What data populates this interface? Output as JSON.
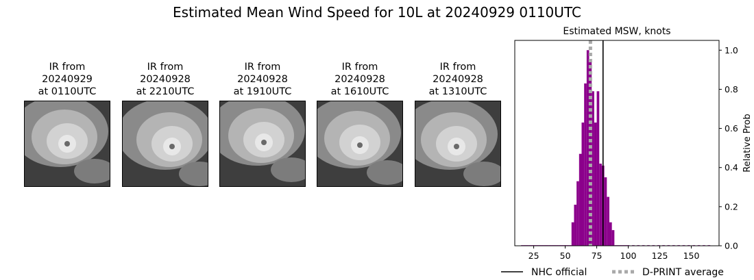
{
  "title": "Estimated Mean Wind Speed for 10L at 20240929 0110UTC",
  "ir_panels": [
    {
      "line1": "IR from",
      "line2": "20240929",
      "line3": "at 0110UTC"
    },
    {
      "line1": "IR from",
      "line2": "20240928",
      "line3": "at 2210UTC"
    },
    {
      "line1": "IR from",
      "line2": "20240928",
      "line3": "at 1910UTC"
    },
    {
      "line1": "IR from",
      "line2": "20240928",
      "line3": "at 1610UTC"
    },
    {
      "line1": "IR from",
      "line2": "20240928",
      "line3": "at 1310UTC"
    }
  ],
  "chart_data": {
    "type": "bar",
    "title": "Estimated MSW, knots",
    "xlabel": "",
    "ylabel": "Relative Prob",
    "xlim": [
      10,
      172
    ],
    "ylim": [
      0,
      1.05
    ],
    "xticks": [
      25,
      50,
      75,
      100,
      125,
      150
    ],
    "yticks": [
      0.0,
      0.2,
      0.4,
      0.6,
      0.8,
      1.0
    ],
    "ytick_labels": [
      "0.0",
      "0.2",
      "0.4",
      "0.6",
      "0.8",
      "1.0"
    ],
    "y_axis_side": "right",
    "bar_color": "#8b008b",
    "bin_width": 2,
    "bins": [
      {
        "x": 16,
        "y": 0.003
      },
      {
        "x": 18,
        "y": 0.003
      },
      {
        "x": 20,
        "y": 0.003
      },
      {
        "x": 22,
        "y": 0.003
      },
      {
        "x": 24,
        "y": 0.003
      },
      {
        "x": 26,
        "y": 0.003
      },
      {
        "x": 28,
        "y": 0.003
      },
      {
        "x": 30,
        "y": 0.003
      },
      {
        "x": 32,
        "y": 0.003
      },
      {
        "x": 34,
        "y": 0.003
      },
      {
        "x": 36,
        "y": 0.003
      },
      {
        "x": 38,
        "y": 0.003
      },
      {
        "x": 40,
        "y": 0.003
      },
      {
        "x": 42,
        "y": 0.003
      },
      {
        "x": 44,
        "y": 0.003
      },
      {
        "x": 46,
        "y": 0.003
      },
      {
        "x": 48,
        "y": 0.003
      },
      {
        "x": 50,
        "y": 0.003
      },
      {
        "x": 52,
        "y": 0.003
      },
      {
        "x": 54,
        "y": 0.003
      },
      {
        "x": 56,
        "y": 0.12
      },
      {
        "x": 58,
        "y": 0.21
      },
      {
        "x": 60,
        "y": 0.33
      },
      {
        "x": 62,
        "y": 0.47
      },
      {
        "x": 64,
        "y": 0.63
      },
      {
        "x": 66,
        "y": 0.83
      },
      {
        "x": 68,
        "y": 1.0
      },
      {
        "x": 70,
        "y": 0.94
      },
      {
        "x": 72,
        "y": 0.79
      },
      {
        "x": 74,
        "y": 0.63
      },
      {
        "x": 76,
        "y": 0.79
      },
      {
        "x": 78,
        "y": 0.42
      },
      {
        "x": 80,
        "y": 0.41
      },
      {
        "x": 82,
        "y": 0.35
      },
      {
        "x": 84,
        "y": 0.25
      },
      {
        "x": 86,
        "y": 0.12
      },
      {
        "x": 88,
        "y": 0.08
      },
      {
        "x": 90,
        "y": 0.003
      },
      {
        "x": 92,
        "y": 0.003
      },
      {
        "x": 94,
        "y": 0.003
      },
      {
        "x": 96,
        "y": 0.003
      },
      {
        "x": 98,
        "y": 0.003
      },
      {
        "x": 100,
        "y": 0.003
      },
      {
        "x": 104,
        "y": 0.003
      },
      {
        "x": 108,
        "y": 0.003
      },
      {
        "x": 112,
        "y": 0.003
      },
      {
        "x": 116,
        "y": 0.003
      },
      {
        "x": 120,
        "y": 0.003
      },
      {
        "x": 124,
        "y": 0.003
      },
      {
        "x": 128,
        "y": 0.003
      },
      {
        "x": 132,
        "y": 0.003
      },
      {
        "x": 136,
        "y": 0.003
      },
      {
        "x": 140,
        "y": 0.003
      },
      {
        "x": 144,
        "y": 0.003
      },
      {
        "x": 148,
        "y": 0.003
      },
      {
        "x": 152,
        "y": 0.003
      },
      {
        "x": 156,
        "y": 0.003
      },
      {
        "x": 160,
        "y": 0.003
      },
      {
        "x": 164,
        "y": 0.003
      }
    ],
    "lines": [
      {
        "name": "NHC official",
        "x": 80,
        "style": "solid",
        "color": "#000000"
      },
      {
        "name": "D-PRINT average",
        "x": 70,
        "style": "dotted",
        "color": "#a9a9a9"
      }
    ],
    "legend": "bottom"
  }
}
